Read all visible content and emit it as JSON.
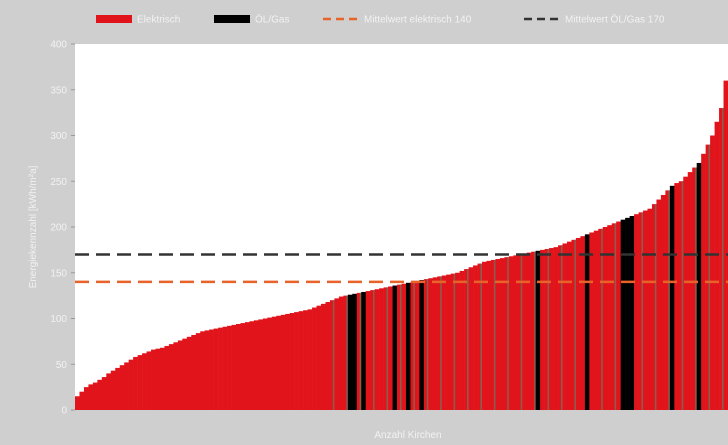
{
  "chart_data": {
    "type": "bar",
    "xlabel": "Anzahl Kirchen",
    "ylabel": "Energiekennzahl [kWh/m²a]",
    "ylim": [
      0,
      400
    ],
    "yticks": [
      0,
      50,
      100,
      150,
      200,
      250,
      300,
      350,
      400
    ],
    "grid": false,
    "legend_position": "top",
    "legend": [
      {
        "key": "elektrisch",
        "label": "Elektrisch",
        "color": "#e1141c",
        "style": "solid"
      },
      {
        "key": "oelgas",
        "label": "ÖL/Gas",
        "color": "#000000",
        "style": "solid"
      },
      {
        "key": "mean_el",
        "label": "Mittelwert elektrisch 140",
        "color": "#e8632a",
        "style": "dashed"
      },
      {
        "key": "mean_og",
        "label": "Mittelwert ÖL/Gas 170",
        "color": "#333333",
        "style": "dashed"
      }
    ],
    "reference_lines": [
      {
        "name": "Mittelwert elektrisch",
        "value": 140,
        "color": "#e8632a"
      },
      {
        "name": "Mittelwert ÖL/Gas",
        "value": 170,
        "color": "#333333"
      }
    ],
    "colors": {
      "elektrisch": "#e1141c",
      "oelgas": "#000000",
      "brown": "#8a5e4f",
      "plot_bg": "#ffffff",
      "frame_bg": "#cfcfcf"
    },
    "series_values": [
      15,
      20,
      25,
      28,
      30,
      33,
      36,
      40,
      43,
      46,
      49,
      52,
      55,
      58,
      60,
      62,
      64,
      66,
      67,
      68,
      70,
      72,
      74,
      76,
      78,
      80,
      82,
      84,
      86,
      87,
      88,
      89,
      90,
      91,
      92,
      93,
      94,
      95,
      96,
      97,
      98,
      99,
      100,
      101,
      102,
      103,
      104,
      105,
      106,
      107,
      108,
      109,
      110,
      112,
      114,
      116,
      118,
      120,
      122,
      124,
      125,
      126,
      127,
      128,
      129,
      130,
      131,
      132,
      133,
      134,
      135,
      136,
      137,
      138,
      139,
      140,
      141,
      142,
      143,
      144,
      145,
      146,
      147,
      148,
      149,
      150,
      152,
      154,
      156,
      158,
      160,
      162,
      163,
      164,
      165,
      166,
      167,
      168,
      169,
      170,
      171,
      172,
      173,
      174,
      175,
      176,
      177,
      178,
      180,
      182,
      184,
      186,
      188,
      190,
      192,
      194,
      196,
      198,
      200,
      202,
      204,
      206,
      208,
      210,
      212,
      214,
      216,
      218,
      220,
      225,
      230,
      235,
      240,
      245,
      248,
      250,
      255,
      260,
      265,
      270,
      280,
      290,
      300,
      315,
      330,
      360
    ],
    "oelgas_indices": [
      61,
      62,
      64,
      71,
      74,
      77,
      103,
      114,
      122,
      123,
      124,
      133,
      139
    ]
  }
}
